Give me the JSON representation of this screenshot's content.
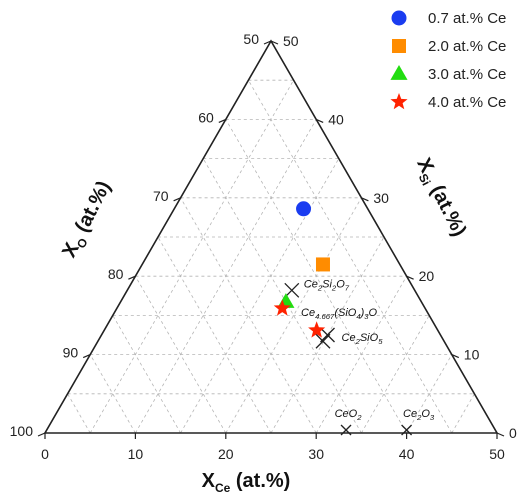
{
  "chart_data": {
    "type": "scatter",
    "subtype": "ternary",
    "axes": {
      "bottom": {
        "label_main": "X",
        "label_sub": "Ce",
        "label_suffix": " (at.%)",
        "ticks": [
          "0",
          "10",
          "20",
          "30",
          "40",
          "50"
        ]
      },
      "right": {
        "label_main": "X",
        "label_sub": "Si",
        "label_suffix": " (at.%)",
        "ticks": [
          "0",
          "10",
          "20",
          "30",
          "40",
          "50"
        ]
      },
      "left": {
        "label_main": "X",
        "label_sub": "O",
        "label_suffix": " (at.%)",
        "ticks": [
          "50",
          "60",
          "70",
          "80",
          "90",
          "100"
        ]
      }
    },
    "grid": true,
    "legend_position": "top-right",
    "series": [
      {
        "name": "0.7 at.% Ce",
        "marker": "circle",
        "color": "#1a3cf0",
        "points": [
          {
            "ce": 14.3,
            "si": 28.6
          }
        ]
      },
      {
        "name": "2.0 at.% Ce",
        "marker": "square",
        "color": "#ff8c00",
        "points": [
          {
            "ce": 20.0,
            "si": 21.5
          }
        ]
      },
      {
        "name": "3.0 at.% Ce",
        "marker": "triangle",
        "color": "#22dd11",
        "points": [
          {
            "ce": 18.3,
            "si": 16.7
          }
        ]
      },
      {
        "name": "4.0 at.% Ce",
        "marker": "star",
        "color": "#ff2200",
        "points": [
          {
            "ce": 18.3,
            "si": 15.9
          },
          {
            "ce": 23.5,
            "si": 13.1
          }
        ]
      }
    ],
    "compounds": [
      {
        "formula": "Ce2Si2O7",
        "parts": [
          [
            "Ce",
            "n"
          ],
          [
            "2",
            "s"
          ],
          [
            "Si",
            "n"
          ],
          [
            "2",
            "s"
          ],
          [
            "O",
            "n"
          ],
          [
            "7",
            "s"
          ]
        ],
        "ce": 18.2,
        "si": 18.2,
        "label_side": "right"
      },
      {
        "formula": "Ce4.667(SiO4)3O",
        "parts": [
          [
            "Ce",
            "n"
          ],
          [
            "4.667",
            "s"
          ],
          [
            "(SiO",
            "n"
          ],
          [
            "4",
            "s"
          ],
          [
            ")",
            "n"
          ],
          [
            "3",
            "s"
          ],
          [
            "O",
            "n"
          ]
        ],
        "ce": 24.9,
        "si": 11.7,
        "label_side": "none"
      },
      {
        "formula": "Ce2SiO5",
        "parts": [
          [
            "Ce",
            "n"
          ],
          [
            "2",
            "s"
          ],
          [
            "SiO",
            "n"
          ],
          [
            "5",
            "s"
          ]
        ],
        "ce": 25.0,
        "si": 12.5,
        "label_side": "right"
      },
      {
        "formula": "CeO2",
        "parts": [
          [
            "CeO",
            "n"
          ],
          [
            "2",
            "s"
          ]
        ],
        "ce": 33.3,
        "si": 0,
        "label_side": "above"
      },
      {
        "formula": "Ce2O3",
        "parts": [
          [
            "Ce",
            "n"
          ],
          [
            "2",
            "s"
          ],
          [
            "O",
            "n"
          ],
          [
            "3",
            "s"
          ]
        ],
        "ce": 40.0,
        "si": 0,
        "label_side": "above"
      }
    ]
  }
}
